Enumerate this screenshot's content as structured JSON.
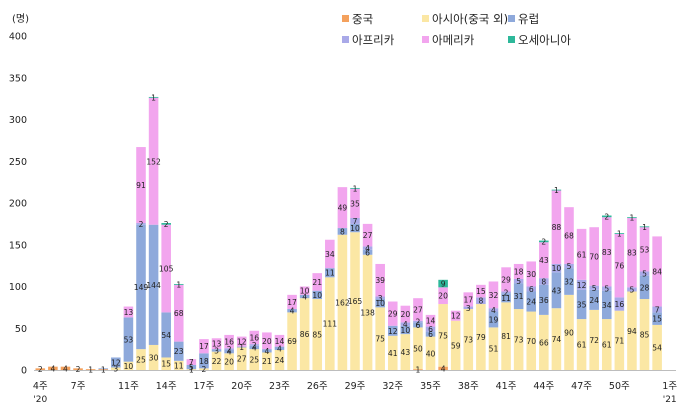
{
  "chart_data": {
    "type": "bar",
    "stacked": true,
    "title": "",
    "xlabel": "",
    "ylabel": "(명)",
    "ylim": [
      0,
      400
    ],
    "yticks": [
      0,
      50,
      100,
      150,
      200,
      250,
      300,
      350,
      400
    ],
    "grid": false,
    "legend_position": "top-right",
    "categories": [
      "4주",
      "5주",
      "6주",
      "7주",
      "8주",
      "9주",
      "10주",
      "11주",
      "12주",
      "13주",
      "14주",
      "15주",
      "16주",
      "17주",
      "18주",
      "19주",
      "20주",
      "21주",
      "22주",
      "23주",
      "24주",
      "25주",
      "26주",
      "27주",
      "28주",
      "29주",
      "30주",
      "31주",
      "32주",
      "33주",
      "34주",
      "35주",
      "36주",
      "37주",
      "38주",
      "39주",
      "40주",
      "41주",
      "42주",
      "43주",
      "44주",
      "45주",
      "46주",
      "47주",
      "48주",
      "49주",
      "50주",
      "51주",
      "52주",
      "53주",
      "1주"
    ],
    "tick_labels": [
      {
        "index": 0,
        "line1": "4주",
        "line2": "'20"
      },
      {
        "index": 3,
        "line1": "7주",
        "line2": ""
      },
      {
        "index": 7,
        "line1": "11주",
        "line2": ""
      },
      {
        "index": 10,
        "line1": "14주",
        "line2": ""
      },
      {
        "index": 13,
        "line1": "17주",
        "line2": ""
      },
      {
        "index": 16,
        "line1": "20주",
        "line2": ""
      },
      {
        "index": 19,
        "line1": "23주",
        "line2": ""
      },
      {
        "index": 22,
        "line1": "26주",
        "line2": ""
      },
      {
        "index": 25,
        "line1": "29주",
        "line2": ""
      },
      {
        "index": 28,
        "line1": "32주",
        "line2": ""
      },
      {
        "index": 31,
        "line1": "35주",
        "line2": ""
      },
      {
        "index": 34,
        "line1": "38주",
        "line2": ""
      },
      {
        "index": 37,
        "line1": "41주",
        "line2": ""
      },
      {
        "index": 40,
        "line1": "44주",
        "line2": ""
      },
      {
        "index": 43,
        "line1": "47주",
        "line2": ""
      },
      {
        "index": 46,
        "line1": "50주",
        "line2": ""
      },
      {
        "index": 50,
        "line1": "1주",
        "line2": "'21"
      }
    ],
    "series": [
      {
        "name": "중국",
        "color": "#F4A15D",
        "values": [
          2,
          4,
          4,
          2,
          1,
          1,
          0,
          0,
          0,
          0,
          0,
          0,
          0,
          0,
          0,
          0,
          0,
          0,
          0,
          0,
          0,
          0,
          0,
          0,
          0,
          0,
          0,
          0,
          0,
          0,
          1,
          0,
          4,
          0,
          0,
          0,
          0,
          0,
          0,
          0,
          0,
          0,
          0,
          0,
          0,
          0,
          0,
          0,
          0,
          0,
          0
        ]
      },
      {
        "name": "아시아(중국 외)",
        "color": "#FBE7A4",
        "values": [
          0,
          0,
          0,
          0,
          0,
          0,
          3,
          10,
          25,
          30,
          15,
          11,
          1,
          2,
          22,
          20,
          27,
          25,
          21,
          24,
          69,
          86,
          85,
          111,
          162,
          165,
          138,
          75,
          41,
          43,
          50,
          40,
          75,
          59,
          73,
          79,
          51,
          81,
          73,
          70,
          66,
          74,
          90,
          61,
          72,
          61,
          71,
          94,
          85,
          54,
          0
        ]
      },
      {
        "name": "유럽",
        "color": "#8EA9DB",
        "values": [
          0,
          0,
          0,
          0,
          0,
          1,
          12,
          53,
          149,
          144,
          54,
          23,
          5,
          18,
          3,
          4,
          1,
          4,
          4,
          4,
          4,
          4,
          10,
          11,
          8,
          10,
          6,
          10,
          12,
          10,
          6,
          6,
          0,
          0,
          0,
          0,
          19,
          11,
          31,
          24,
          36,
          43,
          32,
          35,
          24,
          34,
          0,
          0,
          28,
          15,
          0
        ]
      },
      {
        "name": "아프리카",
        "color": "#A9A9E8",
        "values": [
          0,
          0,
          0,
          0,
          0,
          0,
          0,
          0,
          2,
          0,
          0,
          0,
          0,
          0,
          0,
          2,
          0,
          2,
          0,
          0,
          0,
          0,
          0,
          0,
          0,
          7,
          4,
          3,
          0,
          4,
          2,
          6,
          0,
          0,
          3,
          8,
          4,
          2,
          5,
          6,
          8,
          10,
          5,
          12,
          5,
          5,
          16,
          5,
          5,
          7,
          0
        ]
      },
      {
        "name": "아메리카",
        "color": "#F2A5EE",
        "values": [
          0,
          0,
          0,
          0,
          0,
          0,
          0,
          13,
          91,
          152,
          105,
          68,
          7,
          17,
          13,
          16,
          12,
          16,
          20,
          14,
          17,
          10,
          21,
          34,
          49,
          35,
          27,
          39,
          29,
          20,
          27,
          14,
          20,
          12,
          17,
          15,
          32,
          29,
          18,
          30,
          43,
          88,
          68,
          61,
          70,
          83,
          76,
          83,
          53,
          84,
          0
        ]
      },
      {
        "name": "오세아니아",
        "color": "#2DB89A",
        "values": [
          0,
          0,
          0,
          0,
          0,
          0,
          0,
          0,
          0,
          1,
          2,
          1,
          0,
          0,
          0,
          0,
          0,
          0,
          0,
          0,
          0,
          0,
          0,
          0,
          0,
          1,
          0,
          0,
          0,
          0,
          0,
          0,
          9,
          0,
          0,
          0,
          0,
          0,
          0,
          0,
          2,
          1,
          0,
          0,
          0,
          2,
          1,
          1,
          1,
          0,
          0
        ]
      }
    ],
    "visible_labels": {
      "중국": [
        0,
        1,
        2,
        3,
        4,
        5,
        30,
        32
      ],
      "아시아(중국 외)": [
        6,
        7,
        8,
        9,
        10,
        11,
        12,
        13,
        14,
        15,
        16,
        17,
        18,
        19,
        20,
        21,
        22,
        23,
        24,
        25,
        26,
        27,
        28,
        29,
        30,
        31,
        32,
        33,
        34,
        35,
        36,
        37,
        38,
        39,
        40,
        41,
        42,
        43,
        44,
        45,
        46,
        47,
        48,
        49,
        50
      ],
      "유럽": [
        6,
        7,
        8,
        9,
        10,
        11,
        12,
        13,
        14,
        15,
        16,
        17,
        18,
        19,
        20,
        21,
        22,
        23,
        24,
        25,
        26,
        27,
        28,
        29,
        30,
        31,
        32,
        33,
        34,
        35,
        36,
        37,
        38,
        39,
        40,
        41,
        42,
        43,
        44,
        45,
        46,
        47,
        48,
        49,
        50
      ],
      "아프리카": [
        8,
        15,
        17,
        25,
        26,
        27,
        29,
        30,
        31,
        34,
        35,
        36,
        37,
        38,
        39,
        40,
        41,
        42,
        43,
        44,
        45,
        46,
        47,
        48,
        49,
        50
      ],
      "아메리카": [
        7,
        8,
        9,
        10,
        11,
        12,
        13,
        14,
        15,
        16,
        17,
        18,
        19,
        20,
        21,
        22,
        23,
        24,
        25,
        26,
        27,
        28,
        29,
        30,
        31,
        32,
        33,
        34,
        35,
        36,
        37,
        38,
        39,
        40,
        41,
        42,
        43,
        44,
        45,
        46,
        47,
        48,
        49,
        50
      ],
      "오세아니아": [
        9,
        10,
        11,
        25,
        32,
        40,
        41,
        45,
        46,
        47,
        48
      ]
    },
    "legend": [
      {
        "name": "중국",
        "color": "#F4A15D",
        "row": 0,
        "col": 0
      },
      {
        "name": "아시아(중국 외)",
        "color": "#FBE7A4",
        "row": 0,
        "col": 1
      },
      {
        "name": "유럽",
        "color": "#8EA9DB",
        "row": 0,
        "col": 2
      },
      {
        "name": "아프리카",
        "color": "#A9A9E8",
        "row": 1,
        "col": 0
      },
      {
        "name": "아메리카",
        "color": "#F2A5EE",
        "row": 1,
        "col": 1
      },
      {
        "name": "오세아니아",
        "color": "#2DB89A",
        "row": 1,
        "col": 2
      }
    ]
  }
}
